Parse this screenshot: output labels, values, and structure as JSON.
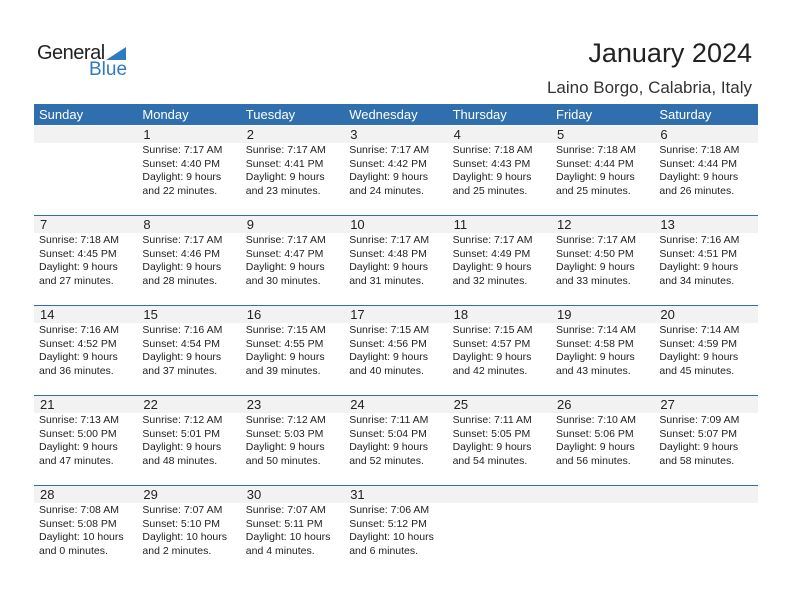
{
  "logo": {
    "general": "General",
    "blue": "Blue"
  },
  "title": "January 2024",
  "location": "Laino Borgo, Calabria, Italy",
  "colors": {
    "header": "#2f6fad",
    "brand": "#2f7bc0",
    "date_strip": "#f2f2f2"
  },
  "weekdays": [
    "Sunday",
    "Monday",
    "Tuesday",
    "Wednesday",
    "Thursday",
    "Friday",
    "Saturday"
  ],
  "weeks": [
    [
      null,
      {
        "day": "1",
        "sunrise": "Sunrise: 7:17 AM",
        "sunset": "Sunset: 4:40 PM",
        "daylight": "Daylight: 9 hours",
        "minutes": "and 22 minutes."
      },
      {
        "day": "2",
        "sunrise": "Sunrise: 7:17 AM",
        "sunset": "Sunset: 4:41 PM",
        "daylight": "Daylight: 9 hours",
        "minutes": "and 23 minutes."
      },
      {
        "day": "3",
        "sunrise": "Sunrise: 7:17 AM",
        "sunset": "Sunset: 4:42 PM",
        "daylight": "Daylight: 9 hours",
        "minutes": "and 24 minutes."
      },
      {
        "day": "4",
        "sunrise": "Sunrise: 7:18 AM",
        "sunset": "Sunset: 4:43 PM",
        "daylight": "Daylight: 9 hours",
        "minutes": "and 25 minutes."
      },
      {
        "day": "5",
        "sunrise": "Sunrise: 7:18 AM",
        "sunset": "Sunset: 4:44 PM",
        "daylight": "Daylight: 9 hours",
        "minutes": "and 25 minutes."
      },
      {
        "day": "6",
        "sunrise": "Sunrise: 7:18 AM",
        "sunset": "Sunset: 4:44 PM",
        "daylight": "Daylight: 9 hours",
        "minutes": "and 26 minutes."
      }
    ],
    [
      {
        "day": "7",
        "sunrise": "Sunrise: 7:18 AM",
        "sunset": "Sunset: 4:45 PM",
        "daylight": "Daylight: 9 hours",
        "minutes": "and 27 minutes."
      },
      {
        "day": "8",
        "sunrise": "Sunrise: 7:17 AM",
        "sunset": "Sunset: 4:46 PM",
        "daylight": "Daylight: 9 hours",
        "minutes": "and 28 minutes."
      },
      {
        "day": "9",
        "sunrise": "Sunrise: 7:17 AM",
        "sunset": "Sunset: 4:47 PM",
        "daylight": "Daylight: 9 hours",
        "minutes": "and 30 minutes."
      },
      {
        "day": "10",
        "sunrise": "Sunrise: 7:17 AM",
        "sunset": "Sunset: 4:48 PM",
        "daylight": "Daylight: 9 hours",
        "minutes": "and 31 minutes."
      },
      {
        "day": "11",
        "sunrise": "Sunrise: 7:17 AM",
        "sunset": "Sunset: 4:49 PM",
        "daylight": "Daylight: 9 hours",
        "minutes": "and 32 minutes."
      },
      {
        "day": "12",
        "sunrise": "Sunrise: 7:17 AM",
        "sunset": "Sunset: 4:50 PM",
        "daylight": "Daylight: 9 hours",
        "minutes": "and 33 minutes."
      },
      {
        "day": "13",
        "sunrise": "Sunrise: 7:16 AM",
        "sunset": "Sunset: 4:51 PM",
        "daylight": "Daylight: 9 hours",
        "minutes": "and 34 minutes."
      }
    ],
    [
      {
        "day": "14",
        "sunrise": "Sunrise: 7:16 AM",
        "sunset": "Sunset: 4:52 PM",
        "daylight": "Daylight: 9 hours",
        "minutes": "and 36 minutes."
      },
      {
        "day": "15",
        "sunrise": "Sunrise: 7:16 AM",
        "sunset": "Sunset: 4:54 PM",
        "daylight": "Daylight: 9 hours",
        "minutes": "and 37 minutes."
      },
      {
        "day": "16",
        "sunrise": "Sunrise: 7:15 AM",
        "sunset": "Sunset: 4:55 PM",
        "daylight": "Daylight: 9 hours",
        "minutes": "and 39 minutes."
      },
      {
        "day": "17",
        "sunrise": "Sunrise: 7:15 AM",
        "sunset": "Sunset: 4:56 PM",
        "daylight": "Daylight: 9 hours",
        "minutes": "and 40 minutes."
      },
      {
        "day": "18",
        "sunrise": "Sunrise: 7:15 AM",
        "sunset": "Sunset: 4:57 PM",
        "daylight": "Daylight: 9 hours",
        "minutes": "and 42 minutes."
      },
      {
        "day": "19",
        "sunrise": "Sunrise: 7:14 AM",
        "sunset": "Sunset: 4:58 PM",
        "daylight": "Daylight: 9 hours",
        "minutes": "and 43 minutes."
      },
      {
        "day": "20",
        "sunrise": "Sunrise: 7:14 AM",
        "sunset": "Sunset: 4:59 PM",
        "daylight": "Daylight: 9 hours",
        "minutes": "and 45 minutes."
      }
    ],
    [
      {
        "day": "21",
        "sunrise": "Sunrise: 7:13 AM",
        "sunset": "Sunset: 5:00 PM",
        "daylight": "Daylight: 9 hours",
        "minutes": "and 47 minutes."
      },
      {
        "day": "22",
        "sunrise": "Sunrise: 7:12 AM",
        "sunset": "Sunset: 5:01 PM",
        "daylight": "Daylight: 9 hours",
        "minutes": "and 48 minutes."
      },
      {
        "day": "23",
        "sunrise": "Sunrise: 7:12 AM",
        "sunset": "Sunset: 5:03 PM",
        "daylight": "Daylight: 9 hours",
        "minutes": "and 50 minutes."
      },
      {
        "day": "24",
        "sunrise": "Sunrise: 7:11 AM",
        "sunset": "Sunset: 5:04 PM",
        "daylight": "Daylight: 9 hours",
        "minutes": "and 52 minutes."
      },
      {
        "day": "25",
        "sunrise": "Sunrise: 7:11 AM",
        "sunset": "Sunset: 5:05 PM",
        "daylight": "Daylight: 9 hours",
        "minutes": "and 54 minutes."
      },
      {
        "day": "26",
        "sunrise": "Sunrise: 7:10 AM",
        "sunset": "Sunset: 5:06 PM",
        "daylight": "Daylight: 9 hours",
        "minutes": "and 56 minutes."
      },
      {
        "day": "27",
        "sunrise": "Sunrise: 7:09 AM",
        "sunset": "Sunset: 5:07 PM",
        "daylight": "Daylight: 9 hours",
        "minutes": "and 58 minutes."
      }
    ],
    [
      {
        "day": "28",
        "sunrise": "Sunrise: 7:08 AM",
        "sunset": "Sunset: 5:08 PM",
        "daylight": "Daylight: 10 hours",
        "minutes": "and 0 minutes."
      },
      {
        "day": "29",
        "sunrise": "Sunrise: 7:07 AM",
        "sunset": "Sunset: 5:10 PM",
        "daylight": "Daylight: 10 hours",
        "minutes": "and 2 minutes."
      },
      {
        "day": "30",
        "sunrise": "Sunrise: 7:07 AM",
        "sunset": "Sunset: 5:11 PM",
        "daylight": "Daylight: 10 hours",
        "minutes": "and 4 minutes."
      },
      {
        "day": "31",
        "sunrise": "Sunrise: 7:06 AM",
        "sunset": "Sunset: 5:12 PM",
        "daylight": "Daylight: 10 hours",
        "minutes": "and 6 minutes."
      },
      null,
      null,
      null
    ]
  ]
}
